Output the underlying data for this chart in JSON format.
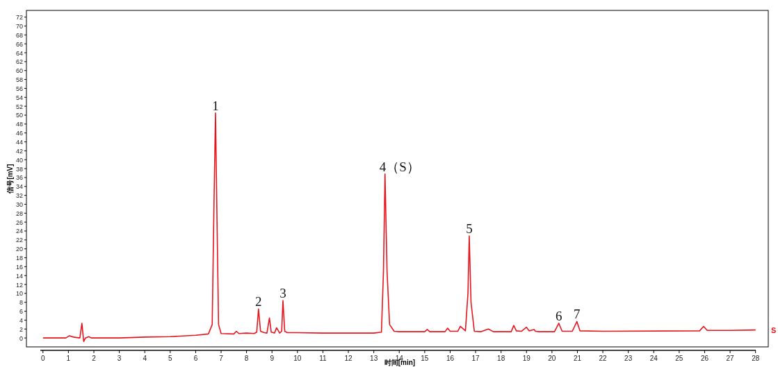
{
  "chart_data": {
    "type": "line",
    "xlabel": "时间[min]",
    "ylabel": "信号[mV]",
    "x": [
      0,
      0.9,
      1.04,
      1.2,
      1.45,
      1.53,
      1.6,
      1.67,
      1.8,
      1.9,
      2.0,
      3,
      4,
      5,
      6,
      6.5,
      6.65,
      6.72,
      6.78,
      6.83,
      6.9,
      7.0,
      7.5,
      7.6,
      7.7,
      8.0,
      8.3,
      8.4,
      8.47,
      8.55,
      8.7,
      8.8,
      8.9,
      8.97,
      9.1,
      9.18,
      9.3,
      9.38,
      9.43,
      9.5,
      9.6,
      10,
      11,
      12,
      13,
      13.3,
      13.38,
      13.44,
      13.52,
      13.62,
      13.8,
      14,
      15,
      15.1,
      15.2,
      15.8,
      15.9,
      16.0,
      16.3,
      16.4,
      16.6,
      16.7,
      16.75,
      16.82,
      16.95,
      17.2,
      17.5,
      17.7,
      18.4,
      18.5,
      18.6,
      18.8,
      19.0,
      19.1,
      19.3,
      19.35,
      19.5,
      20.1,
      20.27,
      20.4,
      20.8,
      20.98,
      21.1,
      22,
      25.8,
      25.96,
      26.1,
      27,
      28
    ],
    "series": [
      {
        "name": "S",
        "color": "#e8141c",
        "values": [
          0,
          0,
          0.5,
          0.2,
          0,
          3.3,
          -0.8,
          0,
          0.3,
          0,
          0,
          0,
          0.2,
          0.3,
          0.6,
          0.9,
          3,
          30,
          50.5,
          30,
          3,
          1,
          0.9,
          1.5,
          1,
          1.1,
          1,
          1.3,
          6.5,
          1.5,
          1.2,
          1.1,
          4.5,
          1.3,
          1.1,
          2.3,
          1.1,
          1.5,
          8.4,
          1.5,
          1.2,
          1.2,
          1.1,
          1.1,
          1.1,
          1.3,
          15,
          36.8,
          15,
          3,
          1.5,
          1.4,
          1.4,
          1.9,
          1.4,
          1.4,
          2.2,
          1.5,
          1.5,
          2.6,
          1.6,
          10,
          22.9,
          8,
          1.5,
          1.4,
          2,
          1.4,
          1.4,
          2.8,
          1.6,
          1.5,
          2.4,
          1.6,
          1.9,
          1.5,
          1.4,
          1.4,
          3.3,
          1.5,
          1.5,
          3.7,
          1.6,
          1.5,
          1.6,
          2.6,
          1.7,
          1.7,
          1.8
        ]
      }
    ],
    "xlim": [
      -0.65,
      28.5
    ],
    "ylim": [
      -2,
      73.5
    ],
    "xticks": [
      0,
      1,
      2,
      3,
      4,
      5,
      6,
      7,
      8,
      9,
      10,
      11,
      12,
      13,
      14,
      15,
      16,
      17,
      18,
      19,
      20,
      21,
      22,
      23,
      24,
      25,
      26,
      27,
      28
    ],
    "yticks": [
      0,
      2,
      4,
      6,
      8,
      10,
      12,
      14,
      16,
      18,
      20,
      22,
      24,
      26,
      28,
      30,
      32,
      34,
      36,
      38,
      40,
      42,
      44,
      46,
      48,
      50,
      52,
      54,
      56,
      58,
      60,
      62,
      64,
      66,
      68,
      70,
      72
    ],
    "annotations": [
      {
        "text": "1",
        "x": 6.78,
        "y": 50.5
      },
      {
        "text": "2",
        "x": 8.47,
        "y": 6.5
      },
      {
        "text": "3",
        "x": 9.43,
        "y": 8.4
      },
      {
        "text": "4（S）",
        "x": 13.44,
        "y": 36.8
      },
      {
        "text": "5",
        "x": 16.75,
        "y": 22.9
      },
      {
        "text": "6",
        "x": 20.27,
        "y": 3.3
      },
      {
        "text": "7",
        "x": 20.98,
        "y": 3.7
      }
    ]
  }
}
